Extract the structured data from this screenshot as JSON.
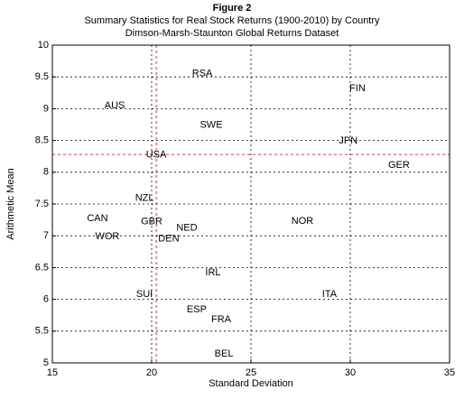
{
  "chart_data": {
    "type": "scatter",
    "figure_label": "Figure 2",
    "title": "Summary Statistics for Real Stock Returns (1900-2010) by Country",
    "subtitle": "Dimson-Marsh-Staunton Global Returns Dataset",
    "x_label": "Standard Deviation",
    "y_label": "Arithmetic Mean",
    "xlim": [
      15,
      35
    ],
    "xticks": [
      15,
      20,
      25,
      30,
      35
    ],
    "ylim": [
      5,
      10
    ],
    "yticks": [
      5,
      5.5,
      6,
      6.5,
      7,
      7.5,
      8,
      8.5,
      9,
      9.5,
      10
    ],
    "grid": true,
    "reference_x": 20.23,
    "reference_y": 8.28,
    "reference_color": "#cc0000",
    "labels": [
      "RSA",
      "FIN",
      "AUS",
      "SWE",
      "JPN",
      "USA",
      "GER",
      "NZL",
      "CAN",
      "GBR",
      "NED",
      "NOR",
      "WOR",
      "DEN",
      "IRL",
      "SUI",
      "ITA",
      "ESP",
      "FRA",
      "BEL"
    ],
    "x": [
      22.55,
      30.36,
      18.14,
      23.0,
      29.9,
      20.23,
      32.45,
      19.64,
      17.27,
      20.0,
      21.77,
      27.59,
      17.77,
      20.86,
      23.09,
      19.64,
      28.95,
      22.27,
      23.5,
      23.64
    ],
    "values": [
      9.55,
      9.32,
      9.05,
      8.74,
      8.49,
      8.27,
      8.11,
      7.59,
      7.27,
      7.22,
      7.12,
      7.23,
      6.99,
      6.95,
      6.42,
      6.08,
      6.08,
      5.84,
      5.68,
      5.14
    ]
  }
}
